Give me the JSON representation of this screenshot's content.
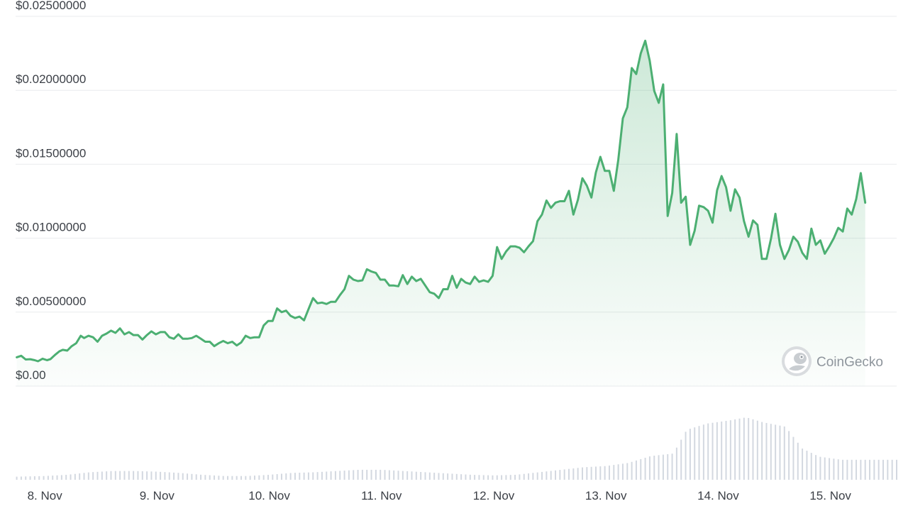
{
  "chart_data": {
    "type": "area",
    "y_ticks": [
      "$0.00",
      "$0.00500000",
      "$0.01000000",
      "$0.01500000",
      "$0.02000000",
      "$0.02500000"
    ],
    "y_tick_values": [
      0,
      0.005,
      0.01,
      0.015,
      0.02,
      0.025
    ],
    "ylim": [
      0,
      0.025
    ],
    "x_tick_labels": [
      "8. Nov",
      "9. Nov",
      "10. Nov",
      "11. Nov",
      "12. Nov",
      "13. Nov",
      "14. Nov",
      "15. Nov"
    ],
    "x_tick_days": [
      8,
      9,
      10,
      11,
      12,
      13,
      14,
      15
    ],
    "x_range_days": [
      7.74,
      15.59
    ],
    "grid": true,
    "colors": {
      "line": "#4caf72",
      "fill_top": "#4caf72",
      "grid": "#e9ebee",
      "volume": "#d3d8e0",
      "text": "#3b3f46"
    },
    "watermark": {
      "text": "CoinGecko",
      "icon": "gecko-logo-icon"
    },
    "price": [
      [
        7.75,
        0.00195
      ],
      [
        7.79,
        0.00205
      ],
      [
        7.83,
        0.0018
      ],
      [
        7.87,
        0.00182
      ],
      [
        7.91,
        0.00175
      ],
      [
        7.94,
        0.00168
      ],
      [
        7.98,
        0.00185
      ],
      [
        8.02,
        0.00175
      ],
      [
        8.05,
        0.00182
      ],
      [
        8.09,
        0.0021
      ],
      [
        8.13,
        0.00235
      ],
      [
        8.16,
        0.00245
      ],
      [
        8.2,
        0.0024
      ],
      [
        8.24,
        0.0027
      ],
      [
        8.28,
        0.0029
      ],
      [
        8.32,
        0.0034
      ],
      [
        8.35,
        0.00325
      ],
      [
        8.39,
        0.0034
      ],
      [
        8.43,
        0.0033
      ],
      [
        8.47,
        0.003
      ],
      [
        8.51,
        0.0034
      ],
      [
        8.55,
        0.00355
      ],
      [
        8.59,
        0.00375
      ],
      [
        8.63,
        0.0036
      ],
      [
        8.67,
        0.0039
      ],
      [
        8.71,
        0.0035
      ],
      [
        8.75,
        0.00365
      ],
      [
        8.79,
        0.00345
      ],
      [
        8.83,
        0.00345
      ],
      [
        8.87,
        0.00315
      ],
      [
        8.91,
        0.00345
      ],
      [
        8.95,
        0.0037
      ],
      [
        8.99,
        0.0035
      ],
      [
        9.03,
        0.00365
      ],
      [
        9.07,
        0.00365
      ],
      [
        9.11,
        0.0033
      ],
      [
        9.15,
        0.0032
      ],
      [
        9.19,
        0.0035
      ],
      [
        9.23,
        0.0032
      ],
      [
        9.27,
        0.0032
      ],
      [
        9.31,
        0.00325
      ],
      [
        9.35,
        0.0034
      ],
      [
        9.39,
        0.0032
      ],
      [
        9.43,
        0.003
      ],
      [
        9.47,
        0.003
      ],
      [
        9.51,
        0.0027
      ],
      [
        9.55,
        0.0029
      ],
      [
        9.59,
        0.00305
      ],
      [
        9.63,
        0.0029
      ],
      [
        9.67,
        0.003
      ],
      [
        9.71,
        0.00275
      ],
      [
        9.75,
        0.00295
      ],
      [
        9.79,
        0.0034
      ],
      [
        9.83,
        0.00325
      ],
      [
        9.87,
        0.0033
      ],
      [
        9.91,
        0.0033
      ],
      [
        9.95,
        0.0041
      ],
      [
        9.99,
        0.0044
      ],
      [
        10.03,
        0.0044
      ],
      [
        10.07,
        0.00525
      ],
      [
        10.11,
        0.005
      ],
      [
        10.15,
        0.0051
      ],
      [
        10.19,
        0.00475
      ],
      [
        10.23,
        0.0046
      ],
      [
        10.27,
        0.0047
      ],
      [
        10.31,
        0.00445
      ],
      [
        10.35,
        0.0052
      ],
      [
        10.39,
        0.00595
      ],
      [
        10.43,
        0.0056
      ],
      [
        10.47,
        0.00565
      ],
      [
        10.51,
        0.00555
      ],
      [
        10.55,
        0.0057
      ],
      [
        10.59,
        0.0057
      ],
      [
        10.63,
        0.00615
      ],
      [
        10.67,
        0.00655
      ],
      [
        10.71,
        0.00745
      ],
      [
        10.75,
        0.0072
      ],
      [
        10.79,
        0.0071
      ],
      [
        10.83,
        0.00715
      ],
      [
        10.87,
        0.0079
      ],
      [
        10.91,
        0.00775
      ],
      [
        10.95,
        0.00765
      ],
      [
        10.99,
        0.0072
      ],
      [
        11.03,
        0.0072
      ],
      [
        11.07,
        0.0068
      ],
      [
        11.11,
        0.0068
      ],
      [
        11.15,
        0.00675
      ],
      [
        11.19,
        0.0075
      ],
      [
        11.23,
        0.0069
      ],
      [
        11.27,
        0.0074
      ],
      [
        11.31,
        0.0071
      ],
      [
        11.35,
        0.00725
      ],
      [
        11.39,
        0.0068
      ],
      [
        11.43,
        0.00635
      ],
      [
        11.47,
        0.00625
      ],
      [
        11.51,
        0.00595
      ],
      [
        11.55,
        0.00655
      ],
      [
        11.59,
        0.00655
      ],
      [
        11.63,
        0.00745
      ],
      [
        11.67,
        0.00665
      ],
      [
        11.71,
        0.00725
      ],
      [
        11.75,
        0.007
      ],
      [
        11.79,
        0.0069
      ],
      [
        11.83,
        0.0074
      ],
      [
        11.87,
        0.00705
      ],
      [
        11.91,
        0.00715
      ],
      [
        11.95,
        0.00705
      ],
      [
        11.99,
        0.00745
      ],
      [
        12.03,
        0.0094
      ],
      [
        12.07,
        0.0086
      ],
      [
        12.11,
        0.0091
      ],
      [
        12.15,
        0.00945
      ],
      [
        12.19,
        0.00945
      ],
      [
        12.23,
        0.00935
      ],
      [
        12.27,
        0.00905
      ],
      [
        12.31,
        0.00945
      ],
      [
        12.35,
        0.0098
      ],
      [
        12.39,
        0.01115
      ],
      [
        12.43,
        0.0116
      ],
      [
        12.47,
        0.01255
      ],
      [
        12.51,
        0.01205
      ],
      [
        12.55,
        0.0124
      ],
      [
        12.59,
        0.0125
      ],
      [
        12.63,
        0.0125
      ],
      [
        12.67,
        0.0132
      ],
      [
        12.71,
        0.0116
      ],
      [
        12.75,
        0.0126
      ],
      [
        12.79,
        0.01405
      ],
      [
        12.83,
        0.01355
      ],
      [
        12.87,
        0.01275
      ],
      [
        12.91,
        0.01445
      ],
      [
        12.95,
        0.0155
      ],
      [
        12.99,
        0.01455
      ],
      [
        13.03,
        0.01455
      ],
      [
        13.07,
        0.0132
      ],
      [
        13.11,
        0.0153
      ],
      [
        13.15,
        0.0181
      ],
      [
        13.19,
        0.01885
      ],
      [
        13.23,
        0.0215
      ],
      [
        13.27,
        0.0211
      ],
      [
        13.31,
        0.0225
      ],
      [
        13.35,
        0.02335
      ],
      [
        13.39,
        0.022
      ],
      [
        13.43,
        0.01995
      ],
      [
        13.47,
        0.01915
      ],
      [
        13.51,
        0.0204
      ],
      [
        13.55,
        0.0115
      ],
      [
        13.59,
        0.01305
      ],
      [
        13.63,
        0.01705
      ],
      [
        13.67,
        0.0124
      ],
      [
        13.71,
        0.0128
      ],
      [
        13.75,
        0.00955
      ],
      [
        13.79,
        0.0105
      ],
      [
        13.83,
        0.0122
      ],
      [
        13.87,
        0.0121
      ],
      [
        13.91,
        0.01185
      ],
      [
        13.95,
        0.01105
      ],
      [
        13.99,
        0.01325
      ],
      [
        14.03,
        0.0142
      ],
      [
        14.07,
        0.01345
      ],
      [
        14.11,
        0.01185
      ],
      [
        14.15,
        0.0133
      ],
      [
        14.19,
        0.01275
      ],
      [
        14.23,
        0.01115
      ],
      [
        14.27,
        0.0101
      ],
      [
        14.31,
        0.0112
      ],
      [
        14.35,
        0.0109
      ],
      [
        14.39,
        0.0086
      ],
      [
        14.43,
        0.0086
      ],
      [
        14.47,
        0.00995
      ],
      [
        14.51,
        0.01165
      ],
      [
        14.55,
        0.00955
      ],
      [
        14.59,
        0.0086
      ],
      [
        14.63,
        0.0092
      ],
      [
        14.67,
        0.0101
      ],
      [
        14.71,
        0.00975
      ],
      [
        14.75,
        0.009
      ],
      [
        14.79,
        0.0086
      ],
      [
        14.83,
        0.01065
      ],
      [
        14.87,
        0.00955
      ],
      [
        14.91,
        0.00985
      ],
      [
        14.95,
        0.00895
      ],
      [
        14.99,
        0.00945
      ],
      [
        15.03,
        0.01
      ],
      [
        15.07,
        0.0107
      ],
      [
        15.11,
        0.01045
      ],
      [
        15.15,
        0.012
      ],
      [
        15.19,
        0.0116
      ],
      [
        15.23,
        0.01265
      ],
      [
        15.27,
        0.0144
      ],
      [
        15.31,
        0.0124
      ]
    ],
    "volume_relative": [
      [
        7.75,
        0.05
      ],
      [
        8.0,
        0.06
      ],
      [
        8.2,
        0.08
      ],
      [
        8.4,
        0.12
      ],
      [
        8.6,
        0.14
      ],
      [
        8.8,
        0.14
      ],
      [
        9.0,
        0.13
      ],
      [
        9.2,
        0.11
      ],
      [
        9.4,
        0.08
      ],
      [
        9.6,
        0.06
      ],
      [
        9.8,
        0.06
      ],
      [
        10.0,
        0.08
      ],
      [
        10.2,
        0.11
      ],
      [
        10.4,
        0.12
      ],
      [
        10.6,
        0.14
      ],
      [
        10.8,
        0.16
      ],
      [
        11.0,
        0.16
      ],
      [
        11.2,
        0.14
      ],
      [
        11.4,
        0.12
      ],
      [
        11.6,
        0.1
      ],
      [
        11.8,
        0.08
      ],
      [
        12.0,
        0.07
      ],
      [
        12.2,
        0.08
      ],
      [
        12.4,
        0.12
      ],
      [
        12.6,
        0.16
      ],
      [
        12.8,
        0.2
      ],
      [
        13.0,
        0.22
      ],
      [
        13.2,
        0.27
      ],
      [
        13.4,
        0.38
      ],
      [
        13.6,
        0.42
      ],
      [
        13.72,
        0.8
      ],
      [
        13.9,
        0.9
      ],
      [
        14.1,
        0.95
      ],
      [
        14.25,
        1.0
      ],
      [
        14.4,
        0.92
      ],
      [
        14.6,
        0.85
      ],
      [
        14.75,
        0.5
      ],
      [
        14.9,
        0.37
      ],
      [
        15.1,
        0.32
      ],
      [
        15.31,
        0.32
      ]
    ]
  }
}
